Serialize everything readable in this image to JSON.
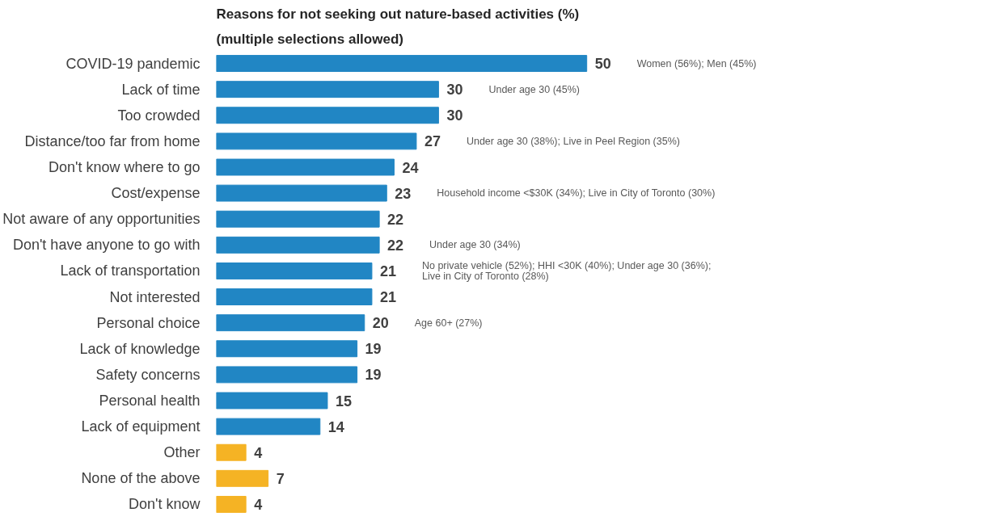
{
  "chart_data": {
    "type": "bar",
    "orientation": "horizontal",
    "title": "Reasons for not seeking out nature-based activities (%)",
    "subtitle": "(multiple selections allowed)",
    "categories": [
      "COVID-19 pandemic",
      "Lack of time",
      "Too crowded",
      "Distance/too far from home",
      "Don't know where to go",
      "Cost/expense",
      "Not aware of any opportunities",
      "Don't have anyone to go with",
      "Lack of transportation",
      "Not interested",
      "Personal choice",
      "Lack of knowledge",
      "Safety concerns",
      "Personal health",
      "Lack of equipment",
      "Other",
      "None of the above",
      "Don't know"
    ],
    "values": [
      50,
      30,
      30,
      27,
      24,
      23,
      22,
      22,
      21,
      21,
      20,
      19,
      19,
      15,
      14,
      4,
      7,
      4
    ],
    "colors": [
      "#2186c4",
      "#2186c4",
      "#2186c4",
      "#2186c4",
      "#2186c4",
      "#2186c4",
      "#2186c4",
      "#2186c4",
      "#2186c4",
      "#2186c4",
      "#2186c4",
      "#2186c4",
      "#2186c4",
      "#2186c4",
      "#2186c4",
      "#f5b324",
      "#f5b324",
      "#f5b324"
    ],
    "data_labels": true,
    "tick_labels": "y",
    "grid": false,
    "annotations": [
      "Women (56%); Men (45%)",
      "Under age 30 (45%)",
      "Under age 30 (38%); Live in Peel Region (35%)",
      "Household income <$30K (34%); Live in City of Toronto (30%)",
      "Under age 30 (34%)",
      "No private vehicle (52%); HHI <30K (40%); Under age 30 (36%);\nLive in City of Toronto (28%)",
      "Age 60+ (27%)"
    ]
  }
}
